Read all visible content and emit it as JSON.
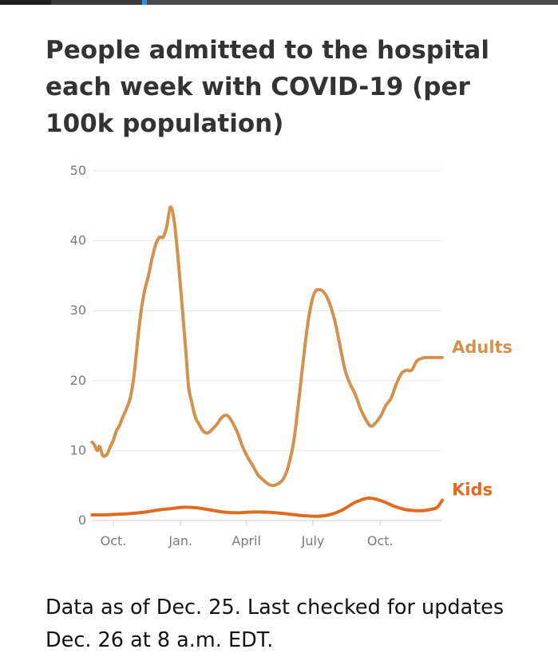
{
  "chart_data": {
    "type": "line",
    "title": "People admitted to the hospital each week with COVID-19 (per 100k population)",
    "xlabel": "",
    "ylabel": "",
    "ylim": [
      0,
      50
    ],
    "yticks": [
      0,
      10,
      20,
      30,
      40,
      50
    ],
    "xticks": [
      "Oct.",
      "Jan.",
      "April",
      "July",
      "Oct."
    ],
    "xtick_dates": [
      "2020-10-01",
      "2021-01-01",
      "2021-04-01",
      "2021-07-01",
      "2021-10-01"
    ],
    "grid": true,
    "legend": "series labels at right end of lines",
    "series": [
      {
        "name": "Adults",
        "color": "#d4914e",
        "x": [
          "2020-09-02",
          "2020-09-05",
          "2020-09-09",
          "2020-09-12",
          "2020-09-16",
          "2020-09-19",
          "2020-09-23",
          "2020-09-27",
          "2020-10-01",
          "2020-10-05",
          "2020-10-09",
          "2020-10-14",
          "2020-10-19",
          "2020-10-24",
          "2020-10-29",
          "2020-11-03",
          "2020-11-08",
          "2020-11-13",
          "2020-11-18",
          "2020-11-23",
          "2020-11-28",
          "2020-12-03",
          "2020-12-08",
          "2020-12-13",
          "2020-12-18",
          "2020-12-23",
          "2020-12-28",
          "2021-01-02",
          "2021-01-06",
          "2021-01-09",
          "2021-01-12",
          "2021-01-16",
          "2021-01-21",
          "2021-01-26",
          "2021-02-01",
          "2021-02-07",
          "2021-02-13",
          "2021-02-20",
          "2021-02-27",
          "2021-03-06",
          "2021-03-13",
          "2021-03-20",
          "2021-03-27",
          "2021-04-03",
          "2021-04-10",
          "2021-04-17",
          "2021-04-24",
          "2021-05-01",
          "2021-05-08",
          "2021-05-15",
          "2021-05-22",
          "2021-05-29",
          "2021-06-05",
          "2021-06-12",
          "2021-06-19",
          "2021-06-26",
          "2021-07-03",
          "2021-07-10",
          "2021-07-17",
          "2021-07-24",
          "2021-07-31",
          "2021-08-07",
          "2021-08-14",
          "2021-08-21",
          "2021-08-28",
          "2021-09-04",
          "2021-09-11",
          "2021-09-18",
          "2021-09-25",
          "2021-10-02",
          "2021-10-09",
          "2021-10-16",
          "2021-10-23",
          "2021-10-30",
          "2021-11-06",
          "2021-11-13",
          "2021-11-20",
          "2021-11-27",
          "2021-12-04",
          "2021-12-11",
          "2021-12-18",
          "2021-12-22",
          "2021-12-25"
        ],
        "values": [
          11.2,
          10.8,
          10.0,
          10.6,
          9.4,
          9.2,
          9.6,
          10.6,
          11.5,
          12.8,
          13.5,
          14.8,
          16.0,
          17.5,
          20.5,
          25.5,
          30.0,
          33.0,
          35.0,
          37.5,
          39.5,
          40.5,
          40.5,
          42.0,
          44.8,
          43.0,
          38.0,
          32.0,
          27.0,
          23.0,
          19.0,
          17.0,
          14.8,
          13.8,
          12.8,
          12.5,
          13.0,
          13.8,
          14.8,
          15.0,
          14.0,
          12.5,
          10.5,
          9.0,
          7.8,
          6.5,
          5.8,
          5.2,
          5.0,
          5.3,
          6.0,
          8.0,
          11.5,
          17.5,
          24.0,
          29.5,
          32.5,
          33.0,
          32.5,
          31.0,
          28.5,
          25.0,
          21.5,
          19.5,
          18.0,
          16.0,
          14.5,
          13.5,
          14.0,
          15.0,
          16.5,
          17.5,
          19.5,
          21.0,
          21.5,
          21.5,
          22.8,
          23.2,
          23.3,
          23.3,
          23.3,
          23.3,
          23.3
        ]
      },
      {
        "name": "Kids",
        "color": "#e06a1f",
        "x": [
          "2020-09-02",
          "2020-09-20",
          "2020-10-08",
          "2020-10-26",
          "2020-11-13",
          "2020-12-01",
          "2020-12-19",
          "2021-01-06",
          "2021-01-24",
          "2021-02-11",
          "2021-03-01",
          "2021-03-19",
          "2021-04-06",
          "2021-04-24",
          "2021-05-12",
          "2021-05-30",
          "2021-06-17",
          "2021-07-05",
          "2021-07-23",
          "2021-08-10",
          "2021-08-28",
          "2021-09-15",
          "2021-10-03",
          "2021-10-21",
          "2021-11-08",
          "2021-11-26",
          "2021-12-10",
          "2021-12-18",
          "2021-12-25"
        ],
        "values": [
          0.8,
          0.8,
          0.9,
          1.0,
          1.2,
          1.5,
          1.7,
          1.9,
          1.8,
          1.5,
          1.2,
          1.1,
          1.2,
          1.2,
          1.1,
          0.9,
          0.7,
          0.6,
          0.8,
          1.5,
          2.6,
          3.2,
          2.8,
          2.0,
          1.5,
          1.4,
          1.6,
          1.9,
          2.9
        ]
      }
    ]
  },
  "footnote": "Data as of Dec. 25. Last checked for updates Dec. 26 at 8 a.m. EDT.",
  "colors": {
    "grid": "#e6e6e6",
    "axis": "#cccccc",
    "tick_text": "#7a7a7a"
  }
}
